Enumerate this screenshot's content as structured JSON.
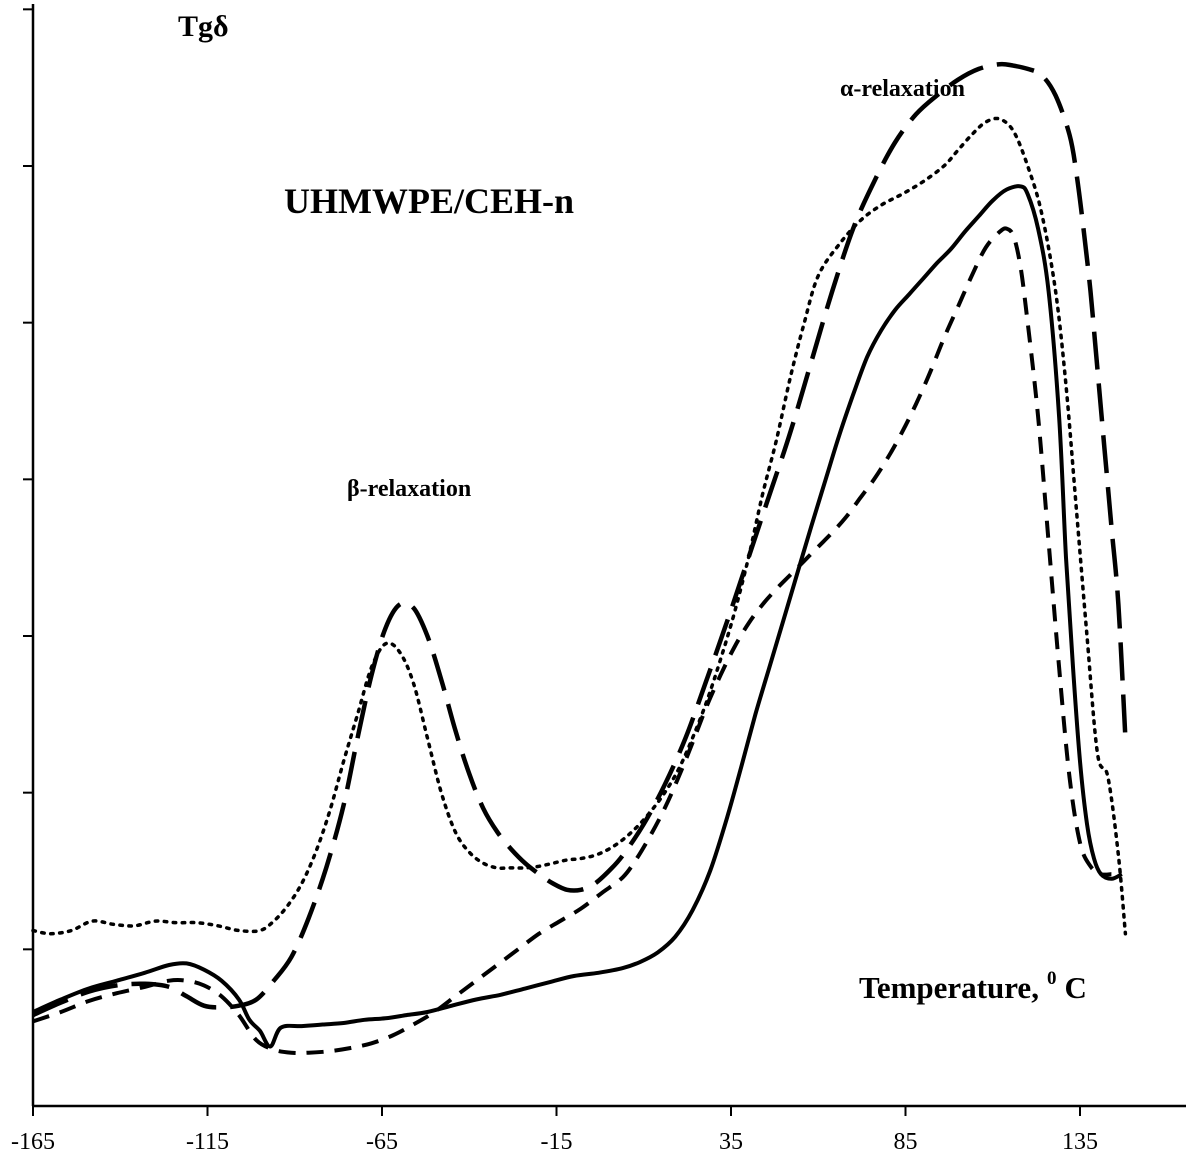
{
  "chart_data": {
    "type": "line",
    "title": "UHMWPE/CEH-n",
    "ylabel": "Tgδ",
    "xlabel_prefix": "Temperature,",
    "xlabel_sup": "0",
    "xlabel_suffix": "C",
    "xlim": [
      -165,
      165
    ],
    "ylim": [
      0,
      7
    ],
    "x_ticks": [
      -165,
      -115,
      -65,
      -15,
      35,
      85,
      135
    ],
    "y_tick_count": 7,
    "grid": false,
    "annotations": [
      {
        "text": "β-relaxation",
        "x": -55,
        "y": 3.85
      },
      {
        "text": "α-relaxation",
        "x": 93,
        "y": 6.4
      },
      {
        "text": "UHMWPE/CEH-n",
        "x": -87,
        "y": 5.65
      }
    ],
    "series": [
      {
        "style": "solid",
        "x": [
          -165,
          -157,
          -149,
          -141,
          -133,
          -126,
          -121,
          -116,
          -111,
          -106,
          -103,
          -100,
          -97,
          -94,
          -88,
          -82,
          -76,
          -70,
          -64,
          -58,
          -52,
          -45,
          -38,
          -31,
          -24,
          -17,
          -10,
          -3,
          4,
          9,
          14,
          19,
          24,
          29,
          34,
          38,
          42,
          46,
          50,
          54,
          58,
          62,
          66,
          70,
          74,
          78,
          82,
          86,
          90,
          94,
          98,
          102,
          106,
          110,
          114,
          118,
          120,
          123,
          126,
          129,
          131,
          133,
          135,
          137,
          139,
          141,
          144,
          147
        ],
        "y": [
          0.6,
          0.68,
          0.75,
          0.8,
          0.85,
          0.9,
          0.91,
          0.87,
          0.8,
          0.68,
          0.55,
          0.48,
          0.38,
          0.5,
          0.51,
          0.52,
          0.53,
          0.55,
          0.56,
          0.58,
          0.6,
          0.64,
          0.68,
          0.71,
          0.75,
          0.79,
          0.83,
          0.85,
          0.88,
          0.92,
          0.98,
          1.08,
          1.25,
          1.5,
          1.85,
          2.17,
          2.5,
          2.8,
          3.1,
          3.4,
          3.7,
          3.99,
          4.28,
          4.54,
          4.78,
          4.95,
          5.08,
          5.18,
          5.28,
          5.38,
          5.47,
          5.58,
          5.68,
          5.78,
          5.85,
          5.87,
          5.82,
          5.6,
          5.2,
          4.4,
          3.5,
          2.8,
          2.2,
          1.8,
          1.58,
          1.48,
          1.45,
          1.48
        ]
      },
      {
        "style": "short-dash",
        "x": [
          -165,
          -157,
          -149,
          -141,
          -133,
          -126,
          -121,
          -116,
          -111,
          -106,
          -101,
          -96,
          -91,
          -86,
          -80,
          -74,
          -68,
          -62,
          -56,
          -50,
          -44,
          -38,
          -32,
          -26,
          -20,
          -14,
          -8,
          -2,
          4,
          8,
          12,
          16,
          20,
          24,
          28,
          32,
          36,
          40,
          44,
          48,
          52,
          56,
          60,
          64,
          68,
          72,
          76,
          80,
          84,
          88,
          92,
          96,
          100,
          104,
          108,
          112,
          114,
          116,
          118,
          120,
          123,
          126,
          129,
          132,
          135,
          138,
          141,
          144
        ],
        "y": [
          0.54,
          0.6,
          0.67,
          0.72,
          0.76,
          0.8,
          0.8,
          0.77,
          0.7,
          0.58,
          0.42,
          0.36,
          0.34,
          0.34,
          0.35,
          0.37,
          0.4,
          0.45,
          0.52,
          0.6,
          0.7,
          0.8,
          0.9,
          1.0,
          1.1,
          1.18,
          1.26,
          1.36,
          1.46,
          1.58,
          1.73,
          1.9,
          2.1,
          2.32,
          2.55,
          2.75,
          2.93,
          3.08,
          3.2,
          3.3,
          3.39,
          3.48,
          3.57,
          3.66,
          3.76,
          3.88,
          4.0,
          4.14,
          4.3,
          4.48,
          4.68,
          4.9,
          5.1,
          5.3,
          5.48,
          5.58,
          5.6,
          5.55,
          5.35,
          5.0,
          4.4,
          3.6,
          2.8,
          2.1,
          1.68,
          1.53,
          1.48,
          1.48
        ]
      },
      {
        "style": "long-dash",
        "x": [
          -165,
          -157,
          -149,
          -141,
          -133,
          -126,
          -121,
          -116,
          -111,
          -106,
          -101,
          -96,
          -91,
          -86,
          -81,
          -76,
          -72,
          -68,
          -64,
          -60,
          -56,
          -52,
          -48,
          -44,
          -40,
          -36,
          -32,
          -28,
          -24,
          -20,
          -16,
          -12,
          -8,
          -4,
          0,
          4,
          10,
          16,
          22,
          28,
          34,
          40,
          46,
          52,
          58,
          64,
          70,
          76,
          82,
          88,
          94,
          100,
          106,
          112,
          116,
          120,
          124,
          128,
          132,
          134,
          136,
          138,
          140,
          142,
          144,
          146,
          148
        ],
        "y": [
          0.58,
          0.66,
          0.73,
          0.77,
          0.78,
          0.76,
          0.7,
          0.64,
          0.63,
          0.64,
          0.68,
          0.8,
          0.95,
          1.2,
          1.52,
          1.92,
          2.35,
          2.75,
          3.05,
          3.2,
          3.18,
          3.0,
          2.72,
          2.4,
          2.12,
          1.9,
          1.75,
          1.64,
          1.55,
          1.48,
          1.42,
          1.38,
          1.38,
          1.42,
          1.5,
          1.6,
          1.8,
          2.05,
          2.35,
          2.72,
          3.1,
          3.5,
          3.9,
          4.3,
          4.75,
          5.2,
          5.6,
          5.9,
          6.15,
          6.33,
          6.45,
          6.55,
          6.62,
          6.65,
          6.64,
          6.62,
          6.58,
          6.45,
          6.2,
          5.95,
          5.6,
          5.2,
          4.7,
          4.2,
          3.7,
          3.2,
          2.35
        ]
      },
      {
        "style": "dotted",
        "x": [
          -165,
          -160,
          -154,
          -148,
          -142,
          -136,
          -130,
          -124,
          -118,
          -112,
          -106,
          -100,
          -96,
          -92,
          -88,
          -84,
          -80,
          -76,
          -72,
          -68,
          -64,
          -60,
          -56,
          -52,
          -48,
          -44,
          -40,
          -36,
          -32,
          -28,
          -24,
          -20,
          -16,
          -12,
          -8,
          -4,
          0,
          4,
          8,
          12,
          16,
          20,
          24,
          28,
          32,
          36,
          40,
          44,
          48,
          52,
          56,
          60,
          66,
          72,
          78,
          84,
          90,
          96,
          100,
          104,
          108,
          112,
          116,
          120,
          124,
          128,
          131,
          134,
          137,
          140,
          143,
          146,
          148
        ],
        "y": [
          1.12,
          1.1,
          1.12,
          1.18,
          1.16,
          1.15,
          1.18,
          1.17,
          1.17,
          1.15,
          1.12,
          1.12,
          1.18,
          1.28,
          1.42,
          1.62,
          1.88,
          2.2,
          2.5,
          2.8,
          2.95,
          2.9,
          2.7,
          2.35,
          2.0,
          1.75,
          1.62,
          1.55,
          1.52,
          1.52,
          1.52,
          1.53,
          1.55,
          1.57,
          1.58,
          1.6,
          1.64,
          1.7,
          1.78,
          1.88,
          2.0,
          2.15,
          2.35,
          2.58,
          2.85,
          3.15,
          3.5,
          3.9,
          4.25,
          4.65,
          5.0,
          5.3,
          5.5,
          5.65,
          5.75,
          5.82,
          5.9,
          6.0,
          6.1,
          6.2,
          6.28,
          6.3,
          6.22,
          6.0,
          5.7,
          5.2,
          4.6,
          3.8,
          3.0,
          2.25,
          2.1,
          1.6,
          1.1
        ]
      }
    ]
  }
}
